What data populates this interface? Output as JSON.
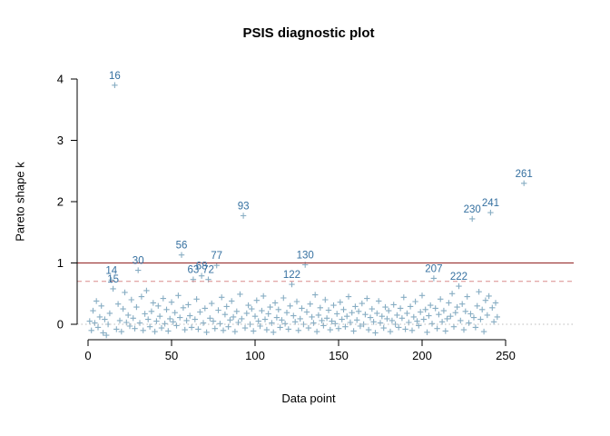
{
  "title": "PSIS diagnostic plot",
  "chart_data": {
    "type": "scatter",
    "marker": "+",
    "title": "PSIS diagnostic plot",
    "xlabel": "Data point",
    "ylabel": "Pareto shape k",
    "x_ticks": [
      0,
      50,
      100,
      150,
      200,
      250
    ],
    "y_ticks": [
      0,
      1,
      2,
      3,
      4
    ],
    "xlim": [
      -6,
      291
    ],
    "ylim": [
      -0.25,
      4.25
    ],
    "grid": false,
    "point_color": "#7aa4bd",
    "label_color": "#3570a0",
    "axis_color": "#000000",
    "reference_lines": [
      {
        "y": 0,
        "style": "dotted",
        "color": "#bcbcbc"
      },
      {
        "y": 0.7,
        "style": "dashed",
        "color": "#d98c8c"
      },
      {
        "y": 1,
        "style": "solid",
        "color": "#9e3d3d"
      }
    ],
    "labeled_points": [
      {
        "x": 16,
        "y": 3.9,
        "label": "16"
      },
      {
        "x": 14,
        "y": 0.72,
        "label": "14"
      },
      {
        "x": 15,
        "y": 0.58,
        "label": "15"
      },
      {
        "x": 30,
        "y": 0.88,
        "label": "30"
      },
      {
        "x": 56,
        "y": 1.13,
        "label": "56"
      },
      {
        "x": 63,
        "y": 0.73,
        "label": "63"
      },
      {
        "x": 68,
        "y": 0.79,
        "label": "68"
      },
      {
        "x": 72,
        "y": 0.73,
        "label": "72"
      },
      {
        "x": 77,
        "y": 0.96,
        "label": "77"
      },
      {
        "x": 93,
        "y": 1.77,
        "label": "93"
      },
      {
        "x": 122,
        "y": 0.65,
        "label": "122"
      },
      {
        "x": 130,
        "y": 0.97,
        "label": "130"
      },
      {
        "x": 207,
        "y": 0.75,
        "label": "207"
      },
      {
        "x": 222,
        "y": 0.62,
        "label": "222"
      },
      {
        "x": 230,
        "y": 1.72,
        "label": "230"
      },
      {
        "x": 241,
        "y": 1.82,
        "label": "241"
      },
      {
        "x": 261,
        "y": 2.3,
        "label": "261"
      }
    ],
    "background_points": {
      "x": [
        1,
        2,
        3,
        4,
        5,
        6,
        7,
        8,
        9,
        10,
        11,
        12,
        13,
        17,
        18,
        19,
        20,
        21,
        22,
        23,
        24,
        25,
        26,
        27,
        28,
        29,
        31,
        32,
        33,
        34,
        35,
        36,
        37,
        38,
        39,
        40,
        41,
        42,
        43,
        44,
        45,
        46,
        47,
        48,
        49,
        50,
        51,
        52,
        53,
        54,
        55,
        57,
        58,
        59,
        60,
        61,
        62,
        64,
        65,
        66,
        67,
        69,
        70,
        71,
        73,
        74,
        75,
        76,
        78,
        79,
        80,
        81,
        82,
        83,
        84,
        85,
        86,
        87,
        88,
        89,
        90,
        91,
        92,
        94,
        95,
        96,
        97,
        98,
        99,
        100,
        101,
        102,
        103,
        104,
        105,
        106,
        107,
        108,
        109,
        110,
        111,
        112,
        113,
        114,
        115,
        116,
        117,
        118,
        119,
        120,
        121,
        123,
        124,
        125,
        126,
        127,
        128,
        129,
        131,
        132,
        133,
        134,
        135,
        136,
        137,
        138,
        139,
        140,
        141,
        142,
        143,
        144,
        145,
        146,
        147,
        148,
        149,
        150,
        151,
        152,
        153,
        154,
        155,
        156,
        157,
        158,
        159,
        160,
        161,
        162,
        163,
        164,
        165,
        166,
        167,
        168,
        169,
        170,
        171,
        172,
        173,
        174,
        175,
        176,
        177,
        178,
        179,
        180,
        181,
        182,
        183,
        184,
        185,
        186,
        187,
        188,
        189,
        190,
        191,
        192,
        193,
        194,
        195,
        196,
        197,
        198,
        199,
        200,
        201,
        202,
        203,
        204,
        205,
        206,
        208,
        209,
        210,
        211,
        212,
        213,
        214,
        215,
        216,
        217,
        218,
        219,
        220,
        221,
        223,
        224,
        225,
        226,
        227,
        228,
        229,
        231,
        232,
        233,
        234,
        235,
        236,
        237,
        238,
        239,
        240,
        242,
        243,
        244,
        245
      ],
      "y": [
        0.05,
        -0.1,
        0.22,
        0.02,
        0.38,
        -0.05,
        0.12,
        0.3,
        -0.14,
        0.08,
        -0.18,
        0.0,
        0.18,
        -0.08,
        0.33,
        0.06,
        -0.12,
        0.25,
        0.52,
        0.03,
        0.15,
        -0.03,
        0.4,
        0.1,
        -0.07,
        0.28,
        0.02,
        0.45,
        -0.1,
        0.17,
        0.55,
        0.08,
        -0.04,
        0.21,
        0.35,
        -0.12,
        0.05,
        0.3,
        0.13,
        -0.06,
        0.42,
        0.01,
        0.24,
        -0.11,
        0.09,
        0.36,
        0.04,
        0.19,
        -0.02,
        0.47,
        0.11,
        0.27,
        -0.09,
        0.06,
        0.32,
        0.14,
        -0.05,
        0.08,
        0.41,
        -0.08,
        0.2,
        0.02,
        0.26,
        -0.13,
        0.1,
        0.34,
        0.05,
        -0.07,
        0.23,
        0.01,
        0.44,
        -0.1,
        0.16,
        0.29,
        -0.04,
        0.07,
        0.38,
        0.12,
        -0.12,
        0.21,
        0.03,
        0.49,
        0.09,
        -0.06,
        0.18,
        0.31,
        0.0,
        0.25,
        -0.11,
        0.13,
        0.39,
        0.05,
        -0.03,
        0.22,
        0.46,
        0.08,
        -0.09,
        0.17,
        0.28,
        0.02,
        -0.13,
        0.35,
        0.11,
        0.24,
        -0.05,
        0.07,
        0.43,
        0.01,
        0.19,
        -0.08,
        0.3,
        0.14,
        0.04,
        0.37,
        -0.1,
        0.09,
        0.26,
        0.0,
        0.2,
        -0.06,
        0.33,
        0.12,
        0.02,
        0.48,
        -0.12,
        0.15,
        0.27,
        0.06,
        -0.02,
        0.4,
        0.1,
        0.23,
        -0.09,
        0.05,
        0.31,
        0.01,
        0.17,
        -0.07,
        0.36,
        0.08,
        0.24,
        -0.04,
        0.13,
        0.45,
        0.03,
        0.19,
        -0.11,
        0.29,
        0.07,
        0.21,
        -0.03,
        0.34,
        0.0,
        0.16,
        0.42,
        -0.09,
        0.11,
        0.25,
        0.04,
        -0.14,
        0.18,
        0.38,
        0.02,
        0.13,
        -0.06,
        0.28,
        0.09,
        0.22,
        -0.12,
        0.06,
        0.32,
        0.0,
        0.15,
        -0.05,
        0.26,
        0.1,
        0.44,
        -0.08,
        0.18,
        0.03,
        0.29,
        -0.1,
        0.12,
        0.37,
        0.05,
        -0.02,
        0.2,
        0.47,
        0.08,
        0.24,
        -0.13,
        0.14,
        0.31,
        0.01,
        0.26,
        -0.07,
        0.16,
        0.41,
        0.04,
        0.22,
        -0.11,
        0.09,
        0.35,
        0.13,
        0.5,
        -0.04,
        0.19,
        0.28,
        0.06,
        0.33,
        -0.09,
        0.21,
        0.45,
        0.02,
        0.17,
        0.11,
        -0.05,
        0.3,
        0.53,
        0.08,
        0.24,
        -0.12,
        0.39,
        0.15,
        0.46,
        0.27,
        0.04,
        0.35,
        0.12
      ]
    }
  }
}
